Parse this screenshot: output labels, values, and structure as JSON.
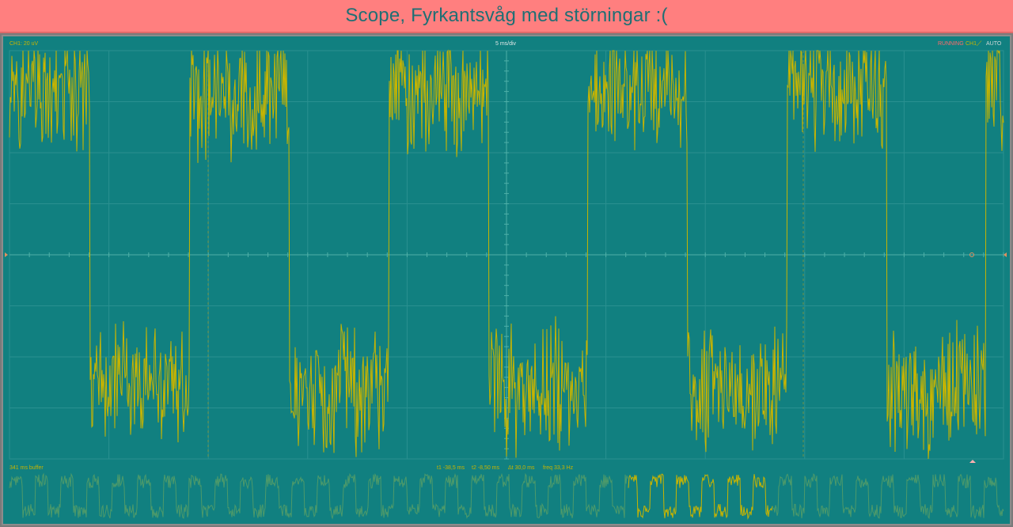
{
  "window": {
    "title": "Scope, Fyrkantsvåg med störningar :("
  },
  "scope": {
    "channel_scale": "CH1: 20 uV",
    "timebase": "5 ms/div",
    "run_state": "RUNNING",
    "trigger_channel": "CH1",
    "trigger_slope_icon": "rising-edge-icon",
    "trigger_mode": "AUTO",
    "buffer_label": "341 ms buffer",
    "measurements": {
      "t1": "t1 -38,5 ms",
      "t2": "t2 -8,50 ms",
      "delta": "Δt 30,0 ms",
      "freq": "freq 33,3 Hz"
    },
    "grid": {
      "divisions_x": 10,
      "divisions_y": 8,
      "visible": true
    },
    "colors": {
      "background": "#118080",
      "trace": "#c8b400",
      "grid": "#2a9090",
      "run_state": "#ff6a6a",
      "title_bar": "#ff7f7f"
    }
  },
  "chart_data": {
    "type": "line",
    "series": [
      {
        "shape": "square-wave-with-noise",
        "frequency_hz": 33.3,
        "high_level_div": 3.2,
        "low_level_div": -2.6,
        "noise_div": 1.5
      }
    ]
  }
}
